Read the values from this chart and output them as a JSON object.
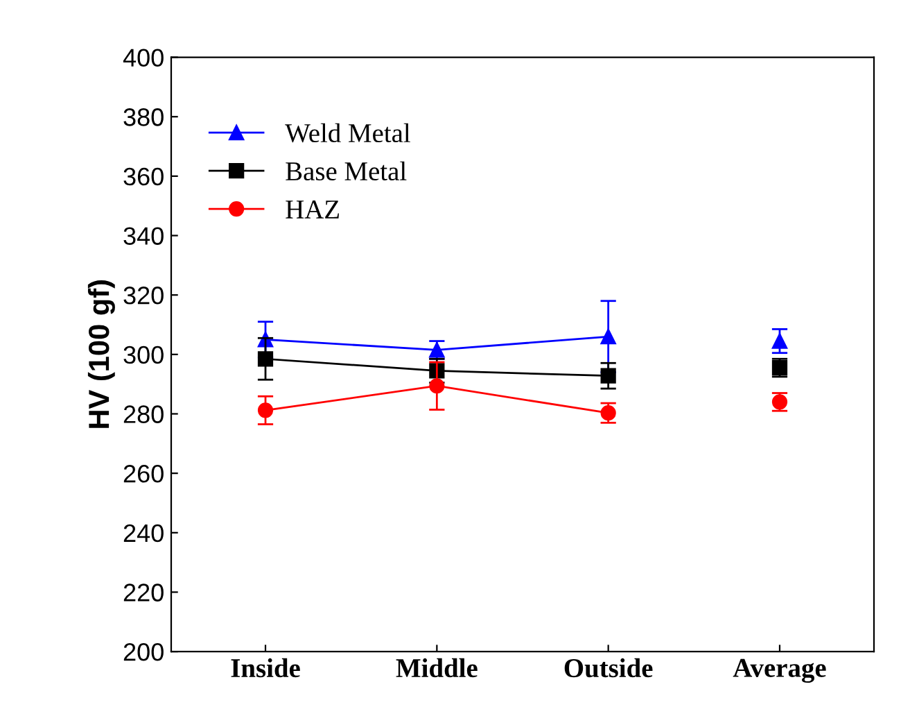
{
  "chart_data": {
    "type": "line",
    "ylabel": "HV (100 gf)",
    "categories": [
      "Inside",
      "Middle",
      "Outside",
      "Average"
    ],
    "ylim": [
      200,
      400
    ],
    "yticks": [
      200,
      220,
      240,
      260,
      280,
      300,
      320,
      340,
      360,
      380,
      400
    ],
    "grid": false,
    "legend": "top left",
    "series": [
      {
        "name": "Weld Metal",
        "color": "#0000ff",
        "marker": "triangle",
        "values": [
          305,
          301.5,
          306,
          null
        ],
        "errors": [
          6,
          3,
          12,
          null
        ]
      },
      {
        "name": "Base Metal",
        "color": "#000000",
        "marker": "square",
        "values": [
          298.5,
          294.5,
          292.8,
          null
        ],
        "errors": [
          7,
          4,
          4.3,
          null
        ]
      },
      {
        "name": "HAZ",
        "color": "#ff0000",
        "marker": "circle",
        "values": [
          281.2,
          289.4,
          280.3,
          null
        ],
        "errors": [
          4.7,
          8,
          3.3,
          null
        ]
      },
      {
        "type": "scatter",
        "color": "#0000ff",
        "marker": "triangle",
        "values": [
          null,
          null,
          null,
          304.5
        ],
        "errors": [
          null,
          null,
          null,
          4
        ]
      },
      {
        "type": "scatter",
        "color": "#000000",
        "marker": "square",
        "values": [
          null,
          null,
          null,
          295.5
        ],
        "errors": [
          null,
          null,
          null,
          3
        ]
      },
      {
        "type": "scatter",
        "color": "#ff0000",
        "marker": "circle",
        "values": [
          null,
          null,
          null,
          284
        ],
        "errors": [
          null,
          null,
          null,
          3
        ]
      }
    ]
  }
}
